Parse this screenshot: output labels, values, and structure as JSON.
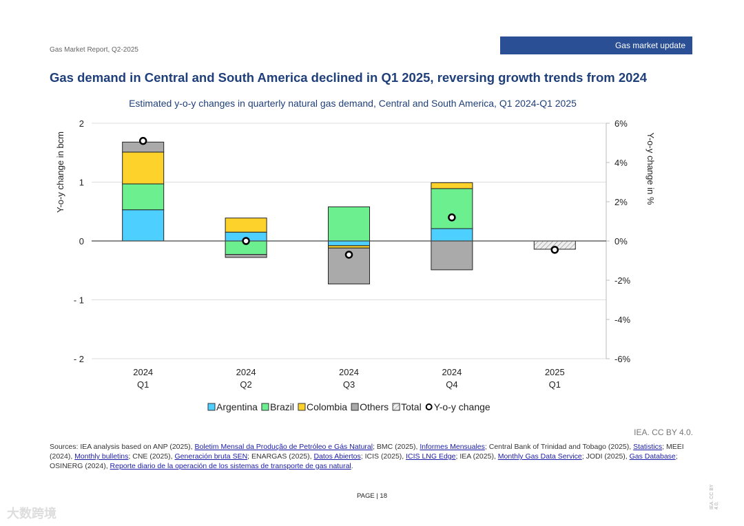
{
  "header": {
    "report": "Gas Market Report, Q2-2025",
    "badge": "Gas market update"
  },
  "headline": "Gas demand in Central and South America declined in Q1 2025, reversing growth trends from 2024",
  "chart_data": {
    "type": "bar",
    "title": "Estimated y-o-y changes in quarterly natural gas demand, Central and South America, Q1 2024-Q1 2025",
    "categories": [
      [
        "2024",
        "Q1"
      ],
      [
        "2024",
        "Q2"
      ],
      [
        "2024",
        "Q3"
      ],
      [
        "2024",
        "Q4"
      ],
      [
        "2025",
        "Q1"
      ]
    ],
    "ylabel": "Y-o-y change in bcm",
    "ylim": [
      -2,
      2
    ],
    "yticks": [
      "- 2",
      "- 1",
      "0",
      "1",
      "2"
    ],
    "ytick_values": [
      -2,
      -1,
      0,
      1,
      2
    ],
    "y2label": "Y-o-y change in %",
    "y2lim": [
      -6,
      6
    ],
    "y2ticks": [
      "-6%",
      "-4%",
      "-2%",
      "0%",
      "2%",
      "4%",
      "6%"
    ],
    "y2tick_values": [
      -6,
      -4,
      -2,
      0,
      2,
      4,
      6
    ],
    "series": [
      {
        "name": "Argentina",
        "color": "#4dcfff",
        "values": [
          0.53,
          0.15,
          -0.08,
          0.21,
          null
        ]
      },
      {
        "name": "Brazil",
        "color": "#6bef8f",
        "values": [
          0.44,
          -0.23,
          0.58,
          0.68,
          null
        ]
      },
      {
        "name": "Colombia",
        "color": "#fcd22b",
        "values": [
          0.54,
          0.24,
          -0.04,
          0.1,
          null
        ]
      },
      {
        "name": "Others",
        "color": "#aaaaaa",
        "values": [
          0.17,
          -0.05,
          -0.61,
          -0.49,
          null
        ]
      },
      {
        "name": "Total",
        "color": "hatch",
        "values": [
          null,
          null,
          null,
          null,
          -0.14
        ]
      }
    ],
    "yoy": {
      "name": "Y-o-y change",
      "values": [
        5.1,
        0.0,
        -0.7,
        1.2,
        -0.45
      ]
    },
    "legend_position": "bottom"
  },
  "credit": "IEA. CC BY 4.0.",
  "sources": [
    {
      "t": "Sources: IEA analysis based on ANP (2025), "
    },
    {
      "l": "Boletim Mensal da Produção de Petróleo e Gás Natural"
    },
    {
      "t": "; BMC (2025), "
    },
    {
      "l": "Informes Mensuales"
    },
    {
      "t": "; Central Bank of Trinidad and Tobago (2025), "
    },
    {
      "l": "Statistics"
    },
    {
      "t": "; MEEI (2024), "
    },
    {
      "l": "Monthly bulletins"
    },
    {
      "t": "; CNE (2025), "
    },
    {
      "l": "Generación bruta SEN"
    },
    {
      "t": "; ENARGAS (2025), "
    },
    {
      "l": "Datos Abiertos"
    },
    {
      "t": "; ICIS (2025), "
    },
    {
      "l": "ICIS LNG Edge"
    },
    {
      "t": "; IEA (2025), "
    },
    {
      "l": "Monthly Gas Data Service"
    },
    {
      "t": "; JODI (2025), "
    },
    {
      "l": "Gas Database"
    },
    {
      "t": "; OSINERG (2024), "
    },
    {
      "l": "Reporte diario de la operación de los sistemas de transporte de gas natural"
    },
    {
      "t": "."
    }
  ],
  "footer": {
    "page": "PAGE | 18",
    "side": "IEA. CC BY 4.0.",
    "watermark": "大数跨境"
  }
}
